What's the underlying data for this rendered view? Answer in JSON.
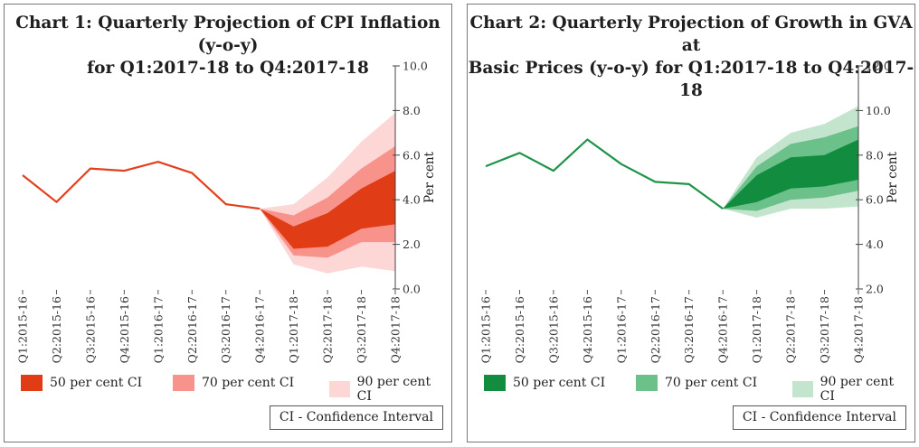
{
  "chart_data": [
    {
      "type": "area",
      "title": "Chart 1: Quarterly Projection of CPI Inflation (y-o-y) for Q1:2017-18 to Q4:2017-18",
      "title_lines": [
        "Chart 1: Quarterly Projection of CPI Inflation (y-o-y)",
        "for Q1:2017-18 to Q4:2017-18"
      ],
      "ylabel": "Per cent",
      "ylim": [
        0,
        10
      ],
      "ytick_values": [
        0,
        2,
        4,
        6,
        8,
        10
      ],
      "ytick_labels": [
        "0.0",
        "2.0",
        "4.0",
        "6.0",
        "8.0",
        "10.0"
      ],
      "categories": [
        "Q1:2015-16",
        "Q2:2015-16",
        "Q3:2015-16",
        "Q4:2015-16",
        "Q1:2016-17",
        "Q2:2016-17",
        "Q3:2016-17",
        "Q4:2016-17",
        "Q1:2017-18",
        "Q2:2017-18",
        "Q3:2017-18",
        "Q4:2017-18"
      ],
      "series": [
        {
          "values": [
            5.1,
            3.9,
            5.4,
            5.3,
            5.7,
            5.2,
            3.8,
            3.6,
            null,
            null,
            null,
            null
          ]
        }
      ],
      "fan_start_index": 7,
      "bands": [
        {
          "name": "90 per cent CI",
          "lower": [
            3.6,
            1.1,
            0.7,
            1.0,
            0.8
          ],
          "upper": [
            3.6,
            3.8,
            5.0,
            6.6,
            7.9
          ]
        },
        {
          "name": "70 per cent CI",
          "lower": [
            3.6,
            1.5,
            1.4,
            2.1,
            2.1
          ],
          "upper": [
            3.6,
            3.3,
            4.1,
            5.4,
            6.4
          ]
        },
        {
          "name": "50 per cent CI",
          "lower": [
            3.6,
            1.8,
            1.9,
            2.7,
            2.9
          ],
          "upper": [
            3.6,
            2.8,
            3.4,
            4.5,
            5.3
          ]
        }
      ],
      "colors": {
        "line": "#e2401c",
        "ci50": "#e03c16",
        "ci70": "#f8938c",
        "ci90": "#fcd7d6"
      },
      "legend": [
        "50 per cent CI",
        "70 per cent CI",
        "90 per cent CI"
      ],
      "legend_position": "bottom",
      "note": "CI - Confidence Interval"
    },
    {
      "type": "area",
      "title": "Chart 2: Quarterly Projection of Growth in GVA at Basic Prices (y-o-y) for Q1:2017-18 to Q4:2017-18",
      "title_lines": [
        "Chart 2: Quarterly Projection of Growth in GVA at",
        "Basic Prices (y-o-y) for Q1:2017-18 to Q4:2017-18"
      ],
      "ylabel": "Per cent",
      "ylim": [
        2,
        12
      ],
      "ytick_values": [
        2,
        4,
        6,
        8,
        10,
        12
      ],
      "ytick_labels": [
        "2.0",
        "4.0",
        "6.0",
        "8.0",
        "10.0",
        "12.0"
      ],
      "categories": [
        "Q1:2015-16",
        "Q2:2015-16",
        "Q3:2015-16",
        "Q4:2015-16",
        "Q1:2016-17",
        "Q2:2016-17",
        "Q3:2016-17",
        "Q4:2016-17",
        "Q1:2017-18",
        "Q2:2017-18",
        "Q3:2017-18",
        "Q4:2017-18"
      ],
      "series": [
        {
          "values": [
            7.5,
            8.1,
            7.3,
            8.7,
            7.6,
            6.8,
            6.7,
            5.6,
            null,
            null,
            null,
            null
          ]
        }
      ],
      "fan_start_index": 7,
      "bands": [
        {
          "name": "90 per cent CI",
          "lower": [
            5.6,
            5.2,
            5.6,
            5.6,
            5.7
          ],
          "upper": [
            5.6,
            7.9,
            9.0,
            9.4,
            10.2
          ]
        },
        {
          "name": "70 per cent CI",
          "lower": [
            5.6,
            5.5,
            6.0,
            6.1,
            6.4
          ],
          "upper": [
            5.6,
            7.5,
            8.5,
            8.8,
            9.3
          ]
        },
        {
          "name": "50 per cent CI",
          "lower": [
            5.6,
            5.9,
            6.5,
            6.6,
            6.9
          ],
          "upper": [
            5.6,
            7.1,
            7.9,
            8.0,
            8.7
          ]
        }
      ],
      "colors": {
        "line": "#1e9448",
        "ci50": "#128c3f",
        "ci70": "#6cc08a",
        "ci90": "#c4e5cd"
      },
      "legend": [
        "50 per cent CI",
        "70 per cent CI",
        "90 per cent CI"
      ],
      "legend_position": "bottom",
      "note": "CI - Confidence Interval"
    }
  ]
}
